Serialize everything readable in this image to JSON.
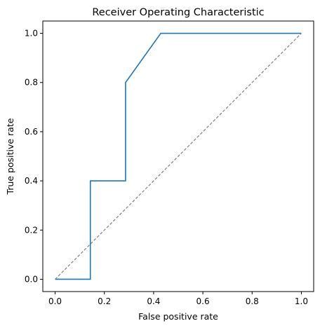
{
  "chart_data": {
    "type": "line",
    "title": "Receiver Operating Characteristic",
    "xlabel": "False positive rate",
    "ylabel": "True positive rate",
    "xlim": [
      -0.05,
      1.05
    ],
    "ylim": [
      -0.05,
      1.05
    ],
    "x_ticks": [
      "0.0",
      "0.2",
      "0.4",
      "0.6",
      "0.8",
      "1.0"
    ],
    "y_ticks": [
      "0.0",
      "0.2",
      "0.4",
      "0.6",
      "0.8",
      "1.0"
    ],
    "grid": false,
    "legend": "none",
    "series": [
      {
        "style": "solid",
        "color": "#1f77b4",
        "x": [
          0.0,
          0.143,
          0.143,
          0.286,
          0.286,
          0.429,
          1.0
        ],
        "y": [
          0.0,
          0.0,
          0.4,
          0.4,
          0.8,
          1.0,
          1.0
        ]
      },
      {
        "style": "dashed",
        "color": "#808080",
        "x": [
          0.0,
          1.0
        ],
        "y": [
          0.0,
          1.0
        ]
      }
    ]
  }
}
